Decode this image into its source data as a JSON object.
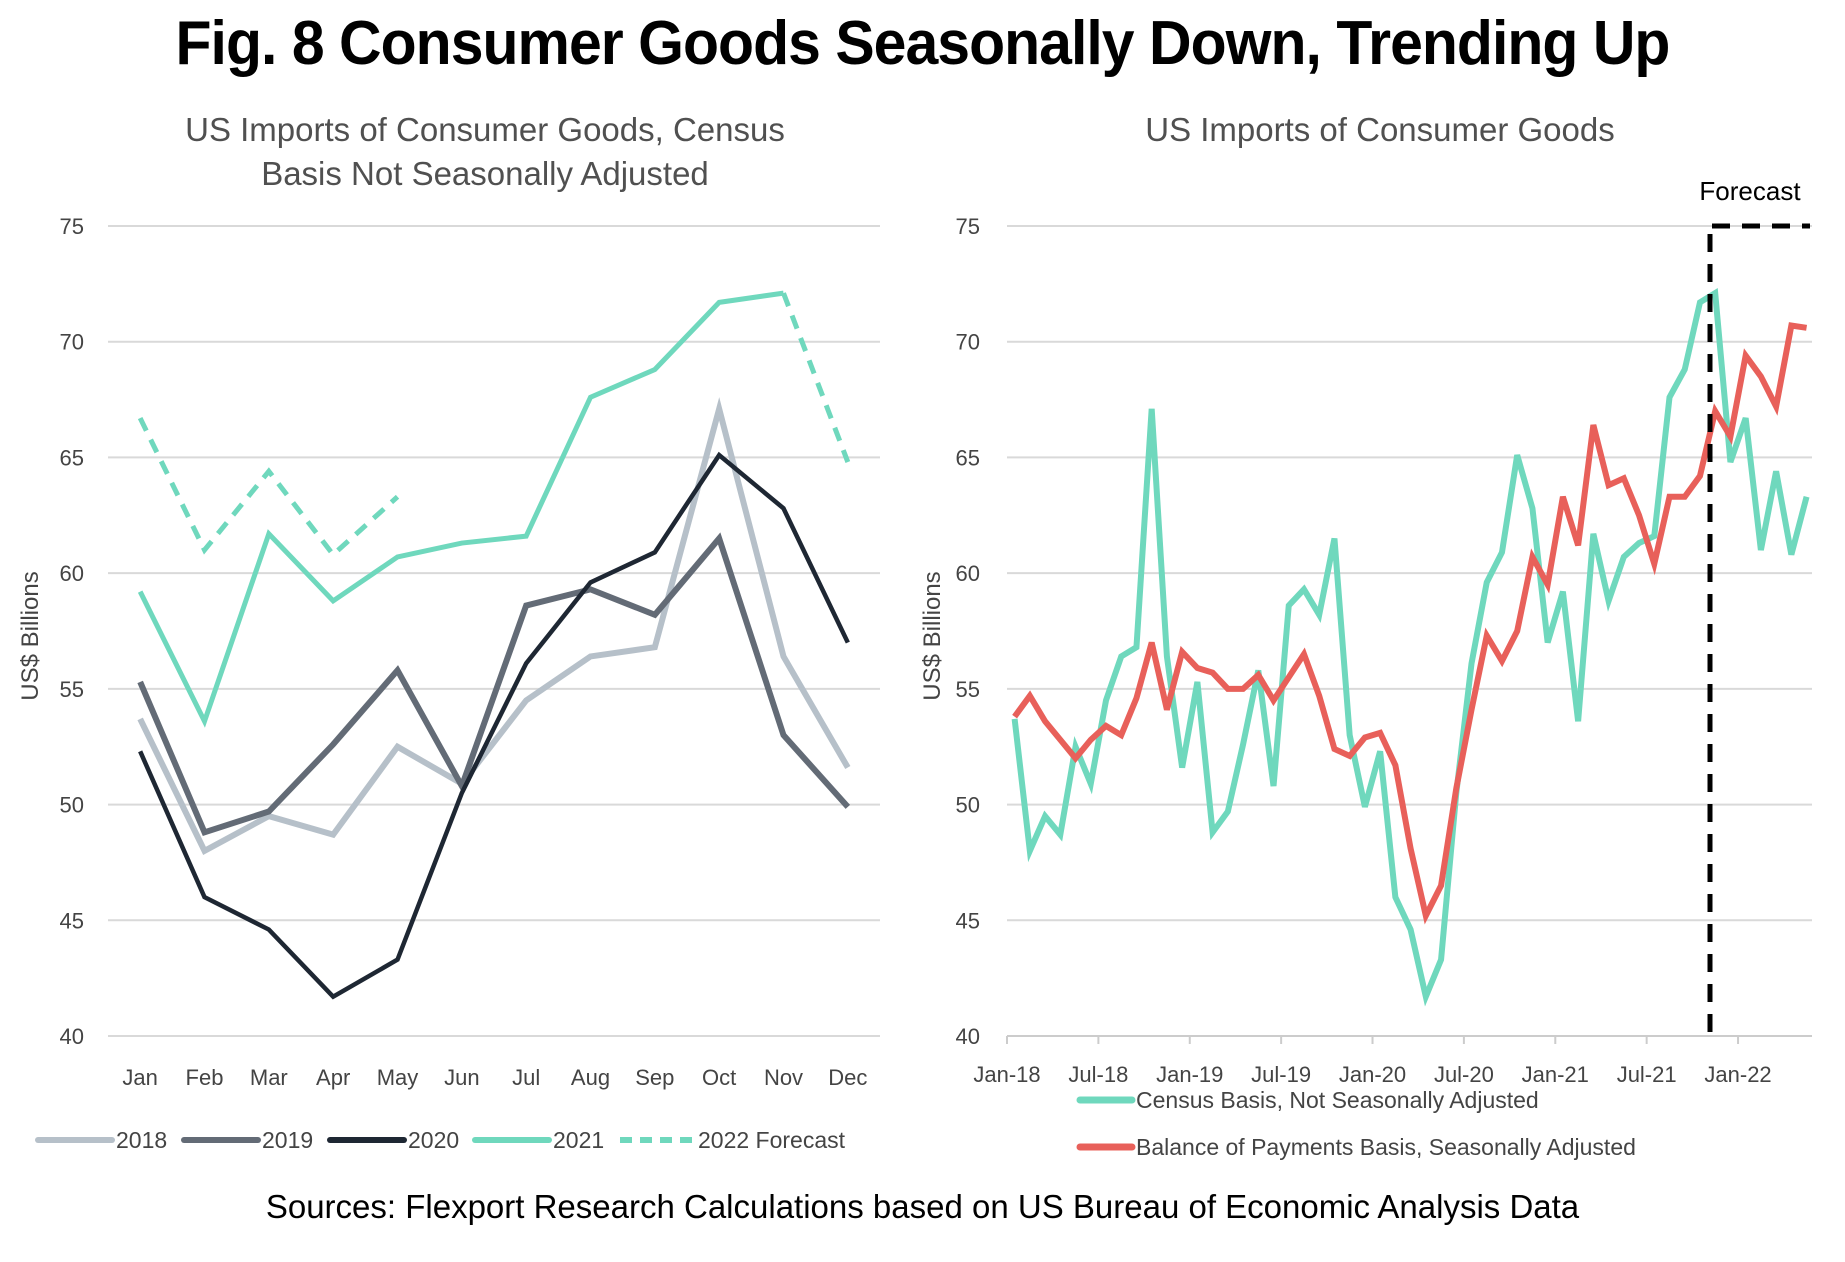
{
  "title": "Fig. 8 Consumer Goods Seasonally Down, Trending Up",
  "source": "Sources: Flexport Research Calculations based on US Bureau of Economic Analysis Data",
  "colors": {
    "y2018": "#b6c0c9",
    "y2019": "#636b76",
    "y2020": "#1e2733",
    "y2021": "#6fd8bd",
    "census": "#6fd8bd",
    "bop": "#e8605a",
    "grid": "#d9d9d9",
    "forecast_marker": "#000000"
  },
  "chart_data": [
    {
      "type": "line",
      "title": "US Imports of Consumer Goods, Census Basis Not Seasonally Adjusted",
      "title_lines": [
        "US Imports of Consumer Goods, Census",
        "Basis Not Seasonally Adjusted"
      ],
      "xlabel": "",
      "ylabel": "US$ Billions",
      "ylim": [
        40,
        75
      ],
      "yticks": [
        40,
        45,
        50,
        55,
        60,
        65,
        70,
        75
      ],
      "grid": true,
      "legend_position": "bottom",
      "categories": [
        "Jan",
        "Feb",
        "Mar",
        "Apr",
        "May",
        "Jun",
        "Jul",
        "Aug",
        "Sep",
        "Oct",
        "Nov",
        "Dec"
      ],
      "series": [
        {
          "name": "2018",
          "style": "solid",
          "color_key": "y2018",
          "values": [
            53.7,
            48.0,
            49.5,
            48.7,
            52.5,
            50.9,
            54.5,
            56.4,
            56.8,
            67.1,
            56.4,
            51.6
          ]
        },
        {
          "name": "2019",
          "style": "solid",
          "color_key": "y2019",
          "values": [
            55.3,
            48.8,
            49.7,
            52.6,
            55.8,
            50.8,
            58.6,
            59.3,
            58.2,
            61.5,
            53.0,
            49.9
          ]
        },
        {
          "name": "2020",
          "style": "solid",
          "color_key": "y2020",
          "values": [
            52.3,
            46.0,
            44.6,
            41.7,
            43.3,
            50.5,
            56.1,
            59.6,
            60.9,
            65.1,
            62.8,
            57.0
          ]
        },
        {
          "name": "2021",
          "style": "solid",
          "color_key": "y2021",
          "values": [
            59.2,
            53.6,
            61.7,
            58.8,
            60.7,
            61.3,
            61.6,
            67.6,
            68.8,
            71.7,
            72.1,
            null
          ]
        },
        {
          "name": "2022 Forecast",
          "style": "dashed",
          "color_key": "y2021",
          "values": [
            66.7,
            61.0,
            64.4,
            60.8,
            63.3,
            null,
            null,
            null,
            null,
            null,
            null,
            null
          ],
          "extra_segment": {
            "from": {
              "category": "Nov",
              "value": 72.1
            },
            "to": {
              "category": "Dec",
              "value": 64.8
            }
          }
        }
      ]
    },
    {
      "type": "line",
      "title": "US Imports of Consumer Goods",
      "xlabel": "",
      "ylabel": "US$ Billions",
      "ylim": [
        40,
        75
      ],
      "yticks": [
        40,
        45,
        50,
        55,
        60,
        65,
        70,
        75
      ],
      "grid": true,
      "legend_position": "bottom",
      "x_start": "Jan-18",
      "xtick_labels": [
        "Jan-18",
        "Jul-18",
        "Jan-19",
        "Jul-19",
        "Jan-20",
        "Jul-20",
        "Jan-21",
        "Jul-21",
        "Jan-22"
      ],
      "annotation": {
        "label": "Forecast",
        "starts_after": "Nov-21"
      },
      "series": [
        {
          "name": "Census Basis, Not Seasonally Adjusted",
          "color_key": "census",
          "values": [
            53.7,
            48.0,
            49.5,
            48.7,
            52.5,
            50.9,
            54.5,
            56.4,
            56.8,
            67.1,
            56.4,
            51.6,
            55.3,
            48.8,
            49.7,
            52.6,
            55.8,
            50.8,
            58.6,
            59.3,
            58.2,
            61.5,
            53.0,
            49.9,
            52.3,
            46.0,
            44.6,
            41.7,
            43.3,
            50.5,
            56.1,
            59.6,
            60.9,
            65.1,
            62.8,
            57.0,
            59.2,
            53.6,
            61.7,
            58.8,
            60.7,
            61.3,
            61.6,
            67.6,
            68.8,
            71.7,
            72.1,
            64.8,
            66.7,
            61.0,
            64.4,
            60.8,
            63.3
          ]
        },
        {
          "name": "Balance of Payments Basis, Seasonally Adjusted",
          "color_key": "bop",
          "values": [
            53.8,
            54.7,
            53.6,
            52.8,
            52.0,
            52.8,
            53.4,
            53.0,
            54.6,
            57.0,
            54.1,
            56.6,
            55.9,
            55.7,
            55.0,
            55.0,
            55.6,
            54.5,
            55.5,
            56.5,
            54.7,
            52.4,
            52.1,
            52.9,
            53.1,
            51.7,
            48.1,
            45.2,
            46.5,
            50.7,
            54.1,
            57.3,
            56.2,
            57.5,
            60.7,
            59.5,
            63.3,
            61.2,
            66.4,
            63.8,
            64.1,
            62.5,
            60.4,
            63.3,
            63.3,
            64.2,
            67.0,
            65.9,
            69.4,
            68.5,
            67.2,
            70.7,
            70.6
          ]
        }
      ]
    }
  ]
}
